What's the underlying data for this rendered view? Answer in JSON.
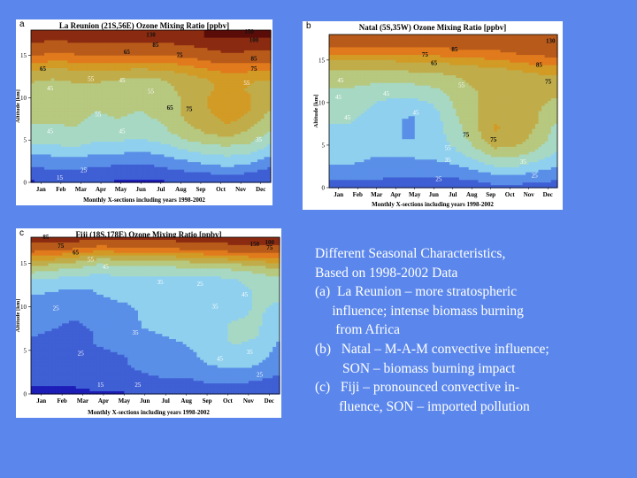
{
  "colors": {
    "background": "#5b87ec",
    "levels": [
      "#1d1db8",
      "#3f5fd4",
      "#5a8fe8",
      "#8fd0ee",
      "#a7d8c4",
      "#b7c87f",
      "#c0ad4a",
      "#d29b25",
      "#e07a1c",
      "#b85a1a",
      "#8a2a10",
      "#5a0c08"
    ]
  },
  "chart_data": [
    {
      "type": "heatmap",
      "letter": "a",
      "title": "La Reunion (21S,56E) Ozone Mixing Ratio [ppbv]",
      "xlabel": "Monthly X-sections including years 1998-2002",
      "ylabel": "Altitude [km]",
      "x": [
        "Jan",
        "Feb",
        "Mar",
        "Apr",
        "May",
        "Jun",
        "Jul",
        "Aug",
        "Sep",
        "Oct",
        "Nov",
        "Dec"
      ],
      "yticks": [
        0,
        5,
        10,
        15
      ],
      "ylim": [
        0,
        18
      ],
      "levels": [
        15,
        25,
        35,
        45,
        55,
        65,
        75,
        85,
        100,
        130,
        150
      ],
      "contour_labels": [
        "130",
        "85",
        "150",
        "100",
        "75",
        "85",
        "65",
        "75",
        "55",
        "45",
        "65",
        "55",
        "55",
        "75",
        "45",
        "65",
        "55",
        "45",
        "35",
        "45",
        "25",
        "15"
      ],
      "profiles": [
        [
          14,
          20,
          26,
          32,
          40,
          48,
          52,
          56,
          56,
          58,
          60,
          62,
          66,
          72,
          84,
          100,
          120,
          140,
          150
        ],
        [
          15,
          21,
          28,
          34,
          42,
          48,
          52,
          55,
          56,
          57,
          58,
          60,
          64,
          70,
          80,
          95,
          115,
          135,
          150
        ],
        [
          16,
          22,
          30,
          36,
          44,
          50,
          54,
          56,
          58,
          58,
          60,
          62,
          66,
          72,
          82,
          97,
          118,
          138,
          150
        ],
        [
          15,
          20,
          26,
          32,
          40,
          46,
          50,
          52,
          54,
          56,
          58,
          62,
          66,
          72,
          82,
          98,
          120,
          140,
          150
        ],
        [
          14,
          19,
          25,
          32,
          40,
          46,
          50,
          54,
          56,
          58,
          58,
          60,
          64,
          72,
          84,
          100,
          120,
          140,
          150
        ],
        [
          14,
          19,
          24,
          30,
          38,
          44,
          48,
          52,
          54,
          56,
          56,
          58,
          62,
          70,
          82,
          98,
          118,
          138,
          150
        ],
        [
          14,
          20,
          26,
          33,
          40,
          48,
          52,
          55,
          57,
          58,
          58,
          60,
          64,
          72,
          84,
          100,
          120,
          140,
          150
        ],
        [
          15,
          22,
          30,
          38,
          46,
          54,
          60,
          64,
          66,
          66,
          66,
          68,
          70,
          76,
          86,
          104,
          125,
          145,
          150
        ],
        [
          16,
          24,
          34,
          42,
          50,
          60,
          66,
          70,
          72,
          74,
          74,
          72,
          74,
          80,
          92,
          112,
          135,
          150,
          150
        ],
        [
          17,
          26,
          36,
          44,
          52,
          62,
          70,
          76,
          80,
          82,
          82,
          80,
          78,
          86,
          100,
          125,
          145,
          150,
          150
        ],
        [
          16,
          24,
          34,
          42,
          50,
          58,
          64,
          70,
          74,
          76,
          76,
          74,
          76,
          84,
          100,
          120,
          140,
          150,
          150
        ],
        [
          14,
          20,
          26,
          34,
          42,
          48,
          54,
          58,
          62,
          66,
          68,
          70,
          74,
          82,
          95,
          115,
          135,
          150,
          150
        ]
      ]
    },
    {
      "type": "heatmap",
      "letter": "b",
      "title": "Natal (5S,35W) Ozone Mixing Ratio [ppbv]",
      "xlabel": "Monthly X-sections including years 1998-2002",
      "ylabel": "Altitude [km]",
      "x": [
        "Jan",
        "Feb",
        "Mar",
        "Apr",
        "May",
        "Jun",
        "Jul",
        "Aug",
        "Sep",
        "Oct",
        "Nov",
        "Dec"
      ],
      "yticks": [
        0,
        5,
        10,
        15
      ],
      "ylim": [
        0,
        18
      ],
      "levels": [
        15,
        25,
        35,
        45,
        55,
        65,
        75,
        85,
        100,
        130,
        150
      ],
      "contour_labels": [
        "85",
        "75",
        "65",
        "85",
        "75",
        "130",
        "45",
        "55",
        "45",
        "45",
        "45",
        "45",
        "75",
        "55",
        "35",
        "35",
        "25",
        "25",
        "75"
      ],
      "profiles": [
        [
          20,
          26,
          32,
          36,
          38,
          40,
          42,
          44,
          46,
          48,
          50,
          52,
          56,
          60,
          66,
          76,
          90,
          110,
          125
        ],
        [
          20,
          26,
          32,
          36,
          38,
          40,
          42,
          44,
          46,
          48,
          50,
          52,
          56,
          60,
          66,
          76,
          90,
          110,
          125
        ],
        [
          20,
          26,
          30,
          34,
          36,
          38,
          38,
          40,
          42,
          44,
          46,
          50,
          54,
          60,
          66,
          76,
          90,
          110,
          125
        ],
        [
          18,
          24,
          30,
          34,
          36,
          36,
          36,
          36,
          36,
          38,
          42,
          48,
          54,
          60,
          66,
          76,
          90,
          110,
          125
        ],
        [
          18,
          24,
          30,
          34,
          36,
          36,
          34,
          34,
          34,
          36,
          42,
          48,
          54,
          60,
          68,
          78,
          92,
          112,
          125
        ],
        [
          18,
          24,
          30,
          34,
          38,
          40,
          40,
          40,
          40,
          42,
          46,
          50,
          56,
          62,
          68,
          78,
          92,
          112,
          125
        ],
        [
          18,
          24,
          32,
          36,
          42,
          46,
          48,
          50,
          52,
          54,
          56,
          58,
          60,
          64,
          70,
          80,
          94,
          112,
          125
        ],
        [
          20,
          26,
          34,
          42,
          50,
          56,
          60,
          62,
          64,
          64,
          64,
          64,
          66,
          68,
          72,
          82,
          96,
          112,
          125
        ],
        [
          22,
          30,
          40,
          50,
          60,
          68,
          74,
          76,
          74,
          72,
          70,
          68,
          68,
          70,
          74,
          84,
          98,
          115,
          125
        ],
        [
          22,
          30,
          40,
          50,
          58,
          66,
          70,
          72,
          72,
          70,
          70,
          68,
          68,
          70,
          76,
          88,
          104,
          120,
          125
        ],
        [
          20,
          28,
          36,
          44,
          52,
          58,
          62,
          64,
          66,
          66,
          66,
          66,
          68,
          72,
          80,
          92,
          108,
          122,
          125
        ],
        [
          20,
          26,
          32,
          38,
          44,
          48,
          50,
          52,
          56,
          60,
          64,
          66,
          70,
          74,
          82,
          94,
          110,
          124,
          125
        ]
      ]
    },
    {
      "type": "heatmap",
      "letter": "c",
      "title": "Fiji (18S,178E) Ozone Mixing Ratio [ppbv]",
      "xlabel": "Monthly X-sections including years 1998-2002",
      "ylabel": "Altitude [km]",
      "x": [
        "Jan",
        "Feb",
        "Mar",
        "Apr",
        "May",
        "Jun",
        "Jul",
        "Aug",
        "Sep",
        "Oct",
        "Nov",
        "Dec"
      ],
      "yticks": [
        0,
        5,
        10,
        15
      ],
      "ylim": [
        0,
        18
      ],
      "levels": [
        15,
        25,
        35,
        45,
        55,
        65,
        75,
        85,
        100,
        130,
        150
      ],
      "contour_labels": [
        "85",
        "75",
        "65",
        "55",
        "45",
        "35",
        "25",
        "25",
        "35",
        "25",
        "15",
        "35",
        "25",
        "45",
        "45",
        "75",
        "150",
        "100",
        "25",
        "35"
      ],
      "profiles": [
        [
          10,
          16,
          20,
          22,
          24,
          24,
          24,
          26,
          28,
          30,
          32,
          34,
          38,
          44,
          56,
          70,
          90,
          120,
          150
        ],
        [
          10,
          16,
          20,
          22,
          24,
          24,
          24,
          24,
          26,
          28,
          30,
          32,
          36,
          42,
          52,
          66,
          86,
          115,
          150
        ],
        [
          12,
          16,
          20,
          22,
          22,
          22,
          22,
          22,
          24,
          26,
          28,
          30,
          34,
          40,
          50,
          62,
          80,
          110,
          150
        ],
        [
          14,
          18,
          22,
          24,
          24,
          24,
          26,
          26,
          28,
          30,
          32,
          34,
          36,
          40,
          46,
          56,
          74,
          100,
          140
        ],
        [
          14,
          18,
          22,
          24,
          24,
          26,
          28,
          30,
          30,
          32,
          34,
          36,
          38,
          42,
          48,
          58,
          76,
          104,
          140
        ],
        [
          16,
          20,
          24,
          26,
          28,
          30,
          32,
          34,
          36,
          36,
          36,
          36,
          38,
          42,
          48,
          58,
          76,
          104,
          140
        ],
        [
          16,
          22,
          26,
          28,
          30,
          32,
          34,
          36,
          36,
          36,
          36,
          36,
          38,
          42,
          48,
          60,
          78,
          108,
          145
        ],
        [
          16,
          22,
          26,
          30,
          32,
          34,
          36,
          38,
          38,
          38,
          38,
          38,
          38,
          42,
          48,
          62,
          82,
          112,
          150
        ],
        [
          18,
          24,
          30,
          34,
          38,
          40,
          42,
          42,
          42,
          40,
          40,
          40,
          40,
          42,
          48,
          62,
          84,
          120,
          150
        ],
        [
          18,
          24,
          30,
          36,
          40,
          44,
          46,
          46,
          46,
          44,
          42,
          42,
          42,
          44,
          52,
          66,
          88,
          125,
          150
        ],
        [
          16,
          22,
          28,
          34,
          38,
          42,
          44,
          46,
          46,
          46,
          46,
          46,
          46,
          48,
          56,
          70,
          92,
          128,
          150
        ],
        [
          14,
          20,
          24,
          28,
          30,
          32,
          34,
          36,
          40,
          42,
          44,
          46,
          48,
          52,
          60,
          74,
          96,
          130,
          150
        ]
      ]
    }
  ],
  "summary": {
    "lines": [
      "Different Seasonal Characteristics,",
      "Based on 1998-2002 Data",
      "",
      "(a)  La Reunion – more stratospheric",
      "     influence; intense biomass burning",
      "      from Africa",
      "(b)   Natal – M-A-M convective influence;",
      "        SON – biomass burning impact",
      "(c)   Fiji – pronounced convective in-",
      "       fluence, SON – imported pollution"
    ]
  }
}
